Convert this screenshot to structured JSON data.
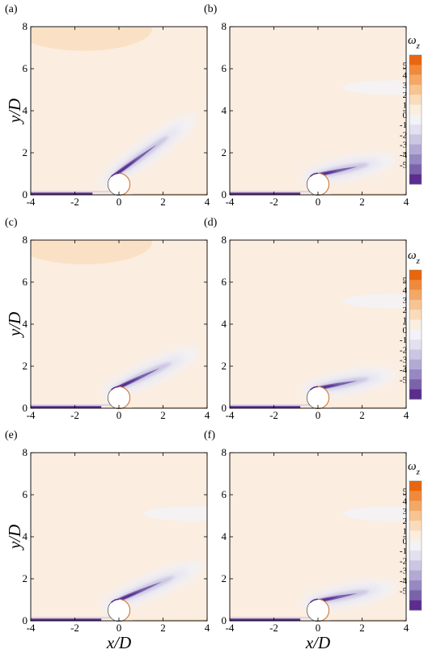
{
  "figure": {
    "xlabel": "x/D",
    "ylabel": "y/D",
    "colorbar_title": "ωz",
    "colorbar_title_main": "ω",
    "colorbar_title_sub": "z"
  },
  "chart_data": {
    "type": "heatmap",
    "xlim": [
      -4,
      4
    ],
    "ylim": [
      0,
      8
    ],
    "xticks": [
      "-4",
      "-2",
      "0",
      "2",
      "4"
    ],
    "yticks": [
      "0",
      "2",
      "4",
      "6",
      "8"
    ],
    "colorbar": {
      "levels": [
        "5",
        "4",
        "3",
        "2",
        "1",
        "0",
        "-1",
        "-2",
        "-3",
        "-4",
        "-5"
      ],
      "colors": [
        "#e8660e",
        "#f08a3a",
        "#f4a866",
        "#f7c492",
        "#f9dcbc",
        "#fbede0",
        "#f3f2f6",
        "#e3e1ef",
        "#cbc6e2",
        "#b2aad3",
        "#9788c2",
        "#7a63ab",
        "#5a2d8e"
      ]
    },
    "cylinder": {
      "center": [
        0,
        0.5
      ],
      "diameter": 1
    },
    "panels": [
      {
        "label": "(a)",
        "shear_layer": {
          "start": [
            -0.3,
            0.85
          ],
          "angle_deg": 36,
          "length": 3.2
        },
        "upper_lobe": true,
        "lower_streak": [
          -4,
          -1.2
        ]
      },
      {
        "label": "(b)",
        "shear_layer": {
          "start": [
            -0.2,
            0.9
          ],
          "angle_deg": 12,
          "length": 2.6
        },
        "upper_lobe": false,
        "lower_streak": [
          -4,
          -0.8
        ]
      },
      {
        "label": "(c)",
        "shear_layer": {
          "start": [
            -0.2,
            0.9
          ],
          "angle_deg": 25,
          "length": 2.9
        },
        "upper_lobe": true,
        "lower_streak": [
          -4,
          -0.8
        ]
      },
      {
        "label": "(d)",
        "shear_layer": {
          "start": [
            -0.2,
            0.9
          ],
          "angle_deg": 11,
          "length": 2.6
        },
        "upper_lobe": false,
        "lower_streak": [
          -4,
          -0.8
        ]
      },
      {
        "label": "(e)",
        "shear_layer": {
          "start": [
            -0.2,
            0.9
          ],
          "angle_deg": 23,
          "length": 3.0
        },
        "upper_lobe": false,
        "lower_streak": [
          -4,
          -0.8
        ]
      },
      {
        "label": "(f)",
        "shear_layer": {
          "start": [
            -0.2,
            0.9
          ],
          "angle_deg": 11,
          "length": 2.6
        },
        "upper_lobe": false,
        "lower_streak": [
          -4,
          -0.8
        ]
      }
    ]
  }
}
